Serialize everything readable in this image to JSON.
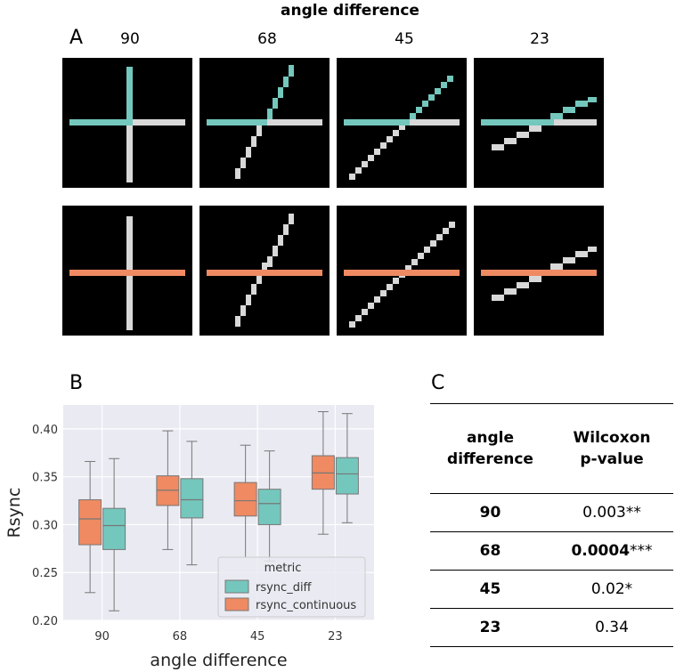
{
  "panel_a": {
    "letter": "A",
    "title": "angle difference",
    "columns": [
      "90",
      "68",
      "45",
      "23"
    ],
    "colors": {
      "line_teal": "#74c7bd",
      "line_orange": "#ef8a62",
      "line_grey": "#d8d8d8",
      "background": "#000000"
    }
  },
  "panel_b": {
    "letter": "B"
  },
  "panel_c": {
    "letter": "C",
    "header": {
      "col1_line1": "angle",
      "col1_line2": "difference",
      "col2_line1": "Wilcoxon",
      "col2_line2": "p-value"
    },
    "rows": [
      {
        "angle": "90",
        "p": "0.003",
        "stars": "**",
        "bold": false
      },
      {
        "angle": "68",
        "p": "0.0004",
        "stars": "***",
        "bold": true
      },
      {
        "angle": "45",
        "p": "0.02",
        "stars": "*",
        "bold": false
      },
      {
        "angle": "23",
        "p": "0.34",
        "stars": "",
        "bold": false
      }
    ]
  },
  "chart_data": {
    "type": "box",
    "xlabel": "angle difference",
    "ylabel": "Rsync",
    "categories": [
      "90",
      "68",
      "45",
      "23"
    ],
    "ylim": [
      0.2,
      0.425
    ],
    "yticks": [
      0.2,
      0.25,
      0.3,
      0.35,
      0.4
    ],
    "ytick_labels": [
      "0.20",
      "0.25",
      "0.30",
      "0.35",
      "0.40"
    ],
    "grid": true,
    "legend": {
      "title": "metric",
      "placement": "lower-right",
      "order": [
        "rsync_diff",
        "rsync_continuous"
      ]
    },
    "series": [
      {
        "name": "rsync_continuous",
        "color": "#ef8a62",
        "boxes": [
          {
            "whislo": 0.229,
            "q1": 0.279,
            "med": 0.306,
            "q3": 0.326,
            "whishi": 0.366
          },
          {
            "whislo": 0.274,
            "q1": 0.32,
            "med": 0.336,
            "q3": 0.351,
            "whishi": 0.398
          },
          {
            "whislo": 0.266,
            "q1": 0.309,
            "med": 0.325,
            "q3": 0.344,
            "whishi": 0.383
          },
          {
            "whislo": 0.29,
            "q1": 0.337,
            "med": 0.354,
            "q3": 0.372,
            "whishi": 0.418
          }
        ]
      },
      {
        "name": "rsync_diff",
        "color": "#74c7bd",
        "boxes": [
          {
            "whislo": 0.21,
            "q1": 0.274,
            "med": 0.299,
            "q3": 0.317,
            "whishi": 0.369
          },
          {
            "whislo": 0.258,
            "q1": 0.307,
            "med": 0.326,
            "q3": 0.348,
            "whishi": 0.387
          },
          {
            "whislo": 0.262,
            "q1": 0.3,
            "med": 0.322,
            "q3": 0.337,
            "whishi": 0.377
          },
          {
            "whislo": 0.302,
            "q1": 0.332,
            "med": 0.353,
            "q3": 0.37,
            "whishi": 0.416
          }
        ]
      }
    ]
  }
}
